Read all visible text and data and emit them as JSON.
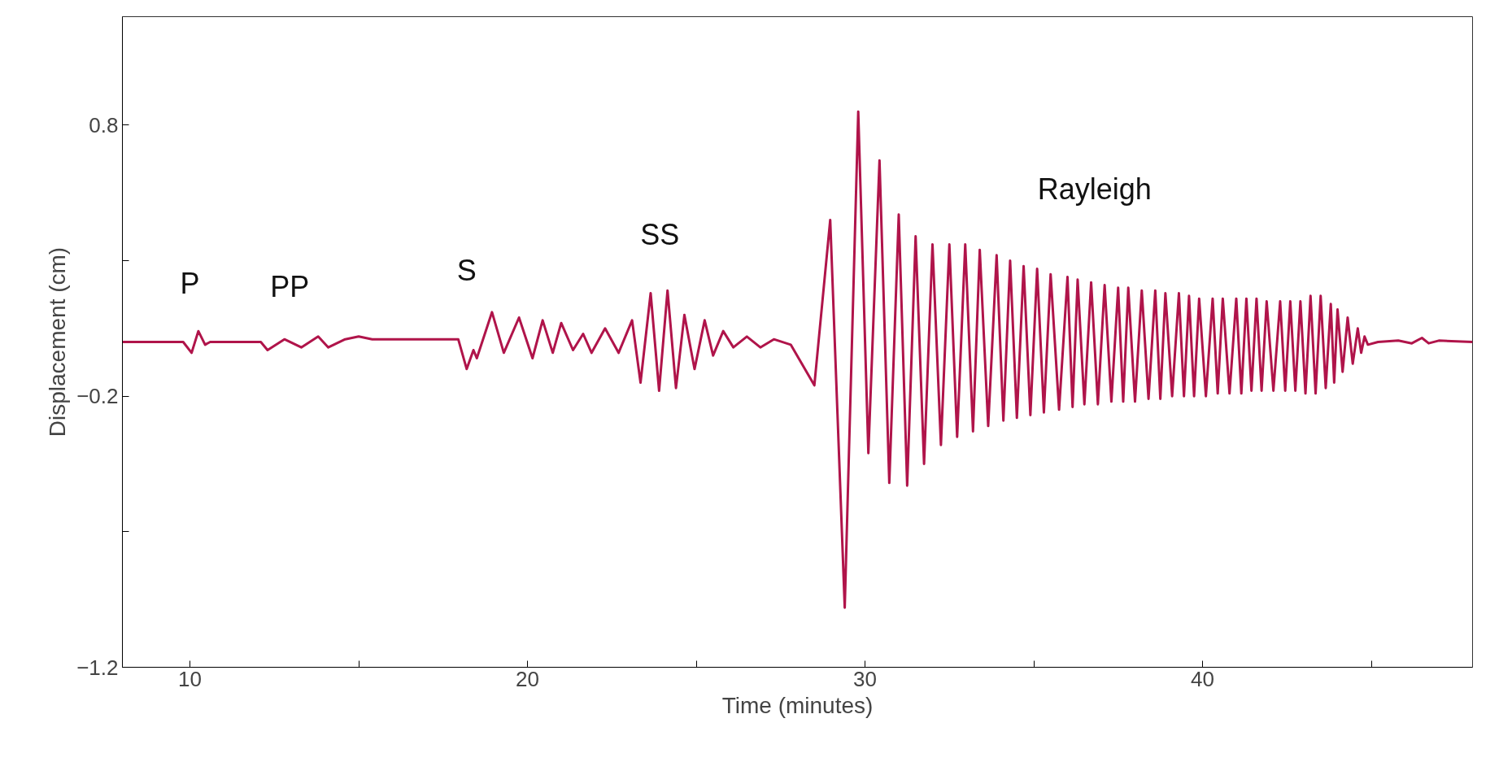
{
  "chart_data": {
    "type": "line",
    "xlabel": "Time (minutes)",
    "ylabel": "Displacement (cm)",
    "xlim": [
      8,
      48
    ],
    "xticks": [
      10,
      20,
      30,
      40,
      {
        "value": 15,
        "label": null
      },
      {
        "value": 25,
        "label": null
      },
      {
        "value": 35,
        "label": null
      },
      {
        "value": 45,
        "label": null
      }
    ],
    "ylim": [
      -1.2,
      1.2
    ],
    "yticks": [
      0.8,
      -0.2,
      -1.2,
      {
        "value": 0.3,
        "label": null
      },
      {
        "value": -0.7,
        "label": null
      }
    ],
    "grid": false,
    "marker": "none",
    "line_style": "solid",
    "annotations": [
      "P",
      "PP",
      "S",
      "SS",
      "Rayleigh"
    ],
    "series": [
      {
        "color": "#b0144a",
        "x": [
          8,
          9.8,
          10.05,
          10.25,
          10.45,
          10.6,
          12.1,
          12.3,
          12.8,
          13.3,
          13.8,
          14.1,
          14.6,
          15.0,
          15.4,
          17.8,
          17.95,
          18.2,
          18.4,
          18.5,
          18.95,
          19.3,
          19.75,
          20.15,
          20.45,
          20.75,
          21.0,
          21.35,
          21.65,
          21.9,
          22.3,
          22.7,
          23.1,
          23.35,
          23.65,
          23.9,
          24.15,
          24.4,
          24.65,
          24.95,
          25.25,
          25.5,
          25.8,
          26.1,
          26.5,
          26.9,
          27.3,
          27.8,
          28.5,
          28.97,
          29.4,
          29.8,
          30.1,
          30.43,
          30.72,
          31.0,
          31.25,
          31.5,
          31.75,
          32.0,
          32.25,
          32.5,
          32.73,
          32.97,
          33.2,
          33.4,
          33.65,
          33.9,
          34.1,
          34.3,
          34.5,
          34.7,
          34.9,
          35.1,
          35.3,
          35.5,
          35.75,
          36.0,
          36.15,
          36.3,
          36.5,
          36.7,
          36.9,
          37.1,
          37.3,
          37.5,
          37.65,
          37.8,
          38.0,
          38.2,
          38.4,
          38.6,
          38.75,
          38.9,
          39.1,
          39.3,
          39.45,
          39.6,
          39.75,
          39.9,
          40.1,
          40.3,
          40.45,
          40.6,
          40.8,
          41.0,
          41.15,
          41.3,
          41.45,
          41.6,
          41.75,
          41.9,
          42.1,
          42.3,
          42.45,
          42.6,
          42.75,
          42.9,
          43.05,
          43.2,
          43.35,
          43.5,
          43.65,
          43.8,
          43.9,
          44.0,
          44.15,
          44.3,
          44.45,
          44.6,
          44.7,
          44.8,
          44.9,
          45.2,
          45.8,
          46.2,
          46.5,
          46.7,
          47.0,
          48
        ],
        "values": [
          0,
          0,
          -0.04,
          0.04,
          -0.01,
          0,
          0,
          -0.03,
          0.01,
          -0.02,
          0.02,
          -0.02,
          0.01,
          0.02,
          0.01,
          0.01,
          0.01,
          -0.1,
          -0.03,
          -0.06,
          0.11,
          -0.04,
          0.09,
          -0.06,
          0.08,
          -0.04,
          0.07,
          -0.03,
          0.03,
          -0.04,
          0.05,
          -0.04,
          0.08,
          -0.15,
          0.18,
          -0.18,
          0.19,
          -0.17,
          0.1,
          -0.1,
          0.08,
          -0.05,
          0.04,
          -0.02,
          0.02,
          -0.02,
          0.01,
          -0.01,
          -0.16,
          0.45,
          -0.98,
          0.85,
          -0.41,
          0.67,
          -0.52,
          0.47,
          -0.53,
          0.39,
          -0.45,
          0.36,
          -0.38,
          0.36,
          -0.35,
          0.36,
          -0.33,
          0.34,
          -0.31,
          0.32,
          -0.29,
          0.3,
          -0.28,
          0.28,
          -0.27,
          0.27,
          -0.26,
          0.25,
          -0.25,
          0.24,
          -0.24,
          0.23,
          -0.23,
          0.22,
          -0.23,
          0.21,
          -0.22,
          0.2,
          -0.22,
          0.2,
          -0.22,
          0.19,
          -0.21,
          0.19,
          -0.21,
          0.18,
          -0.2,
          0.18,
          -0.2,
          0.17,
          -0.2,
          0.16,
          -0.2,
          0.16,
          -0.19,
          0.16,
          -0.19,
          0.16,
          -0.19,
          0.16,
          -0.18,
          0.16,
          -0.18,
          0.15,
          -0.18,
          0.15,
          -0.18,
          0.15,
          -0.18,
          0.15,
          -0.19,
          0.17,
          -0.19,
          0.17,
          -0.17,
          0.14,
          -0.15,
          0.12,
          -0.11,
          0.09,
          -0.08,
          0.05,
          -0.04,
          0.02,
          -0.01,
          0,
          0.005,
          -0.005,
          0.015,
          -0.005,
          0.005,
          0
        ]
      }
    ]
  }
}
